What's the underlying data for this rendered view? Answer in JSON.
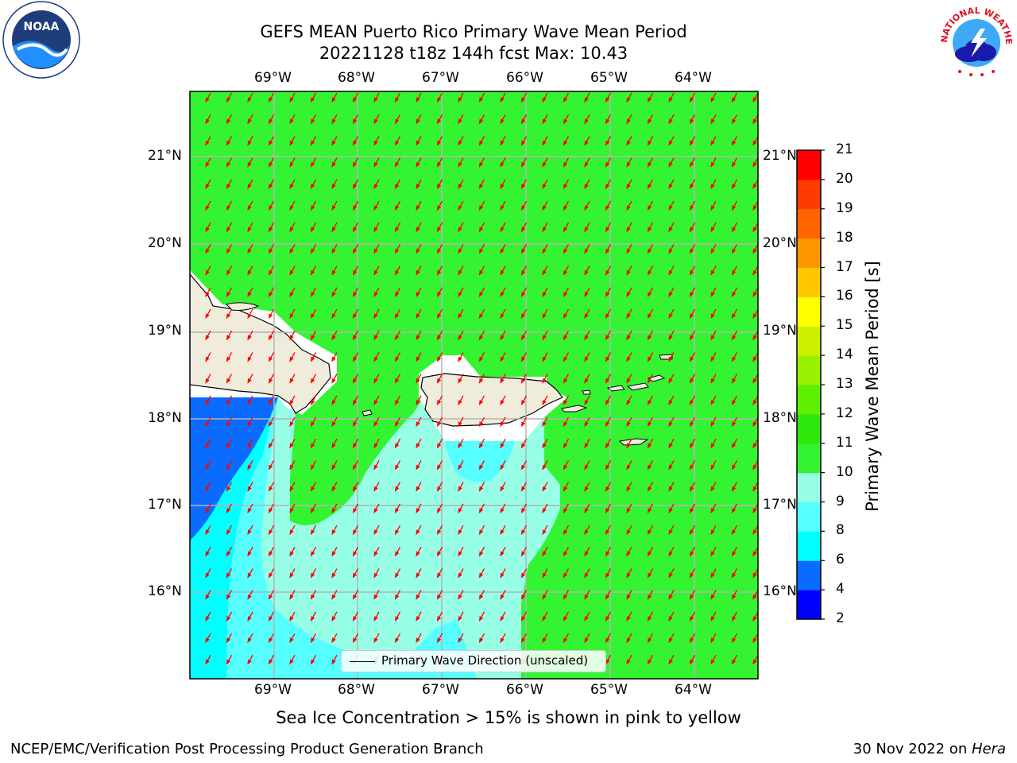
{
  "header": {
    "title_line1": "GEFS MEAN Puerto Rico Primary Wave Mean Period",
    "title_line2": "20221128 t18z 144h fcst   Max: 10.43"
  },
  "logos": {
    "left": {
      "icon": "noaa-logo-icon",
      "text": "NOAA"
    },
    "right": {
      "icon": "nws-logo-icon",
      "ring_text": "NATIONAL WEATHER SERVICE"
    }
  },
  "map": {
    "lon_labels": [
      "69°W",
      "68°W",
      "67°W",
      "66°W",
      "65°W",
      "64°W"
    ],
    "lat_labels": [
      "21°N",
      "20°N",
      "19°N",
      "18°N",
      "17°N",
      "16°N"
    ],
    "arrow_color": "#ff0000",
    "land_color": "#efecdc",
    "legend_label": "Primary Wave Direction (unscaled)"
  },
  "colorbar": {
    "title": "Primary Wave Mean Period [s]",
    "ticks": [
      "2",
      "4",
      "6",
      "8",
      "9",
      "10",
      "11",
      "12",
      "13",
      "14",
      "15",
      "16",
      "17",
      "18",
      "19",
      "20",
      "21"
    ],
    "colors": [
      "#0000ff",
      "#0a6bff",
      "#00ffff",
      "#55ffff",
      "#96ffe6",
      "#34f432",
      "#2ee80c",
      "#5ef000",
      "#99f000",
      "#ccf000",
      "#ffff00",
      "#ffc800",
      "#ff9600",
      "#ff6400",
      "#ff3c00",
      "#ff0000"
    ]
  },
  "note": "Sea Ice Concentration > 15% is shown in pink to yellow",
  "footer": {
    "left": "NCEP/EMC/Verification Post Processing Product Generation Branch",
    "right_prefix": "30 Nov 2022 on ",
    "right_italic": "Hera"
  }
}
